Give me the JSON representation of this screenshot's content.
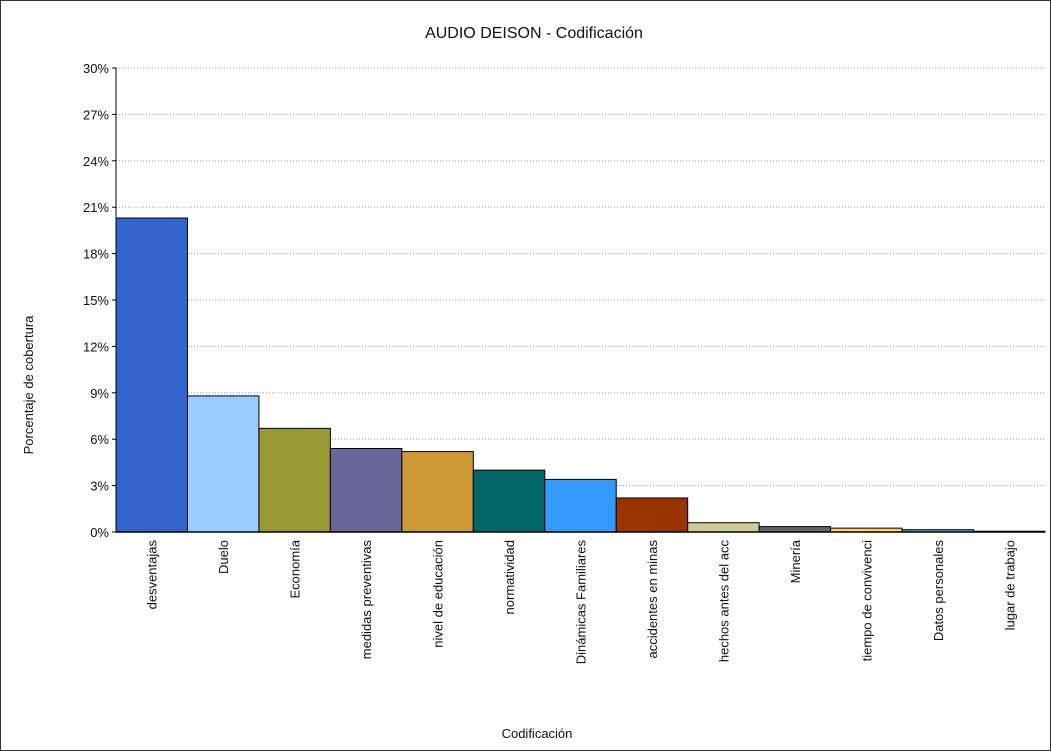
{
  "chart_data": {
    "type": "bar",
    "title": "AUDIO  DEISON - Codificación",
    "xlabel": "Codificación",
    "ylabel": "Porcentaje de cobertura",
    "ylim": [
      0,
      30
    ],
    "yticks": [
      "0%",
      "3%",
      "6%",
      "9%",
      "12%",
      "15%",
      "18%",
      "21%",
      "24%",
      "27%",
      "30%"
    ],
    "grid": true,
    "categories": [
      "desventajas",
      "Duelo",
      "Economía",
      "medidas preventivas",
      "nivel de educación",
      "normatividad",
      "Dinámicas Familiares",
      "accidentes en minas",
      "hechos antes del acc",
      "Minería",
      "tiempo de convivenci",
      "Datos personales",
      "lugar de trabajo"
    ],
    "values": [
      20.3,
      8.8,
      6.7,
      5.4,
      5.2,
      4.0,
      3.4,
      2.2,
      0.6,
      0.35,
      0.25,
      0.15,
      0.05
    ],
    "colors": [
      "#3366CC",
      "#99CCFF",
      "#999933",
      "#666699",
      "#CC9933",
      "#006666",
      "#3399FF",
      "#993300",
      "#CCCC99",
      "#666666",
      "#FFCC66",
      "#6699CC",
      "#663366"
    ]
  }
}
